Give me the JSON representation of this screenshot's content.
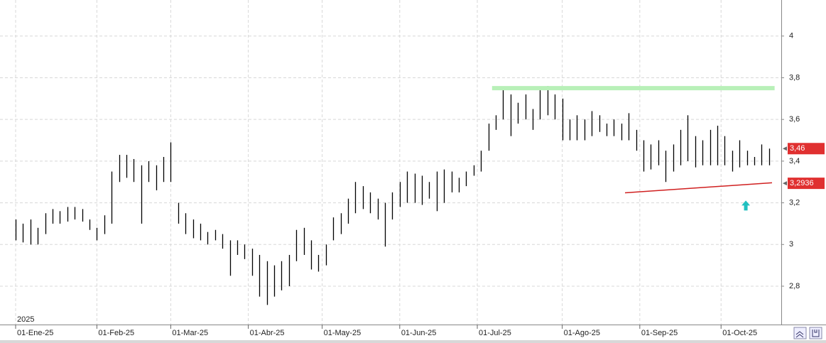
{
  "chart_data": {
    "type": "hilo",
    "year_label": "2025",
    "x": [
      0,
      2,
      4,
      6,
      8,
      10,
      12,
      14,
      16,
      18,
      20,
      22,
      24,
      26,
      28,
      30,
      32,
      34,
      36,
      38,
      40,
      42,
      44,
      46,
      48,
      50,
      52,
      54,
      56,
      58,
      60,
      62,
      64,
      66,
      68,
      70,
      72,
      74,
      76,
      78,
      80,
      82,
      84,
      86,
      88,
      90,
      92,
      94,
      96,
      98,
      100,
      102,
      104,
      106,
      108,
      110,
      112,
      114,
      116,
      118,
      120,
      122,
      124,
      126,
      128,
      130,
      132,
      134,
      136,
      138,
      140,
      142,
      144,
      146,
      148,
      150,
      152,
      154,
      156,
      158,
      160,
      162,
      164,
      166,
      168,
      170,
      172,
      174,
      176,
      178,
      180,
      182,
      184,
      186,
      188,
      190,
      192,
      194,
      196,
      198,
      200,
      202,
      204
    ],
    "high": [
      3.12,
      3.1,
      3.12,
      3.08,
      3.15,
      3.17,
      3.16,
      3.18,
      3.18,
      3.17,
      3.12,
      3.08,
      3.14,
      3.35,
      3.43,
      3.43,
      3.41,
      3.38,
      3.4,
      3.38,
      3.42,
      3.49,
      3.2,
      3.15,
      3.12,
      3.1,
      3.06,
      3.07,
      3.05,
      3.02,
      3.02,
      3.0,
      2.98,
      2.95,
      2.92,
      2.9,
      2.92,
      2.95,
      3.07,
      3.08,
      3.02,
      2.95,
      3.0,
      3.13,
      3.15,
      3.22,
      3.3,
      3.28,
      3.25,
      3.22,
      3.2,
      3.25,
      3.3,
      3.35,
      3.34,
      3.33,
      3.3,
      3.35,
      3.36,
      3.35,
      3.32,
      3.35,
      3.38,
      3.45,
      3.58,
      3.62,
      3.75,
      3.72,
      3.68,
      3.72,
      3.65,
      3.75,
      3.76,
      3.72,
      3.7,
      3.6,
      3.62,
      3.6,
      3.64,
      3.62,
      3.58,
      3.6,
      3.58,
      3.63,
      3.55,
      3.5,
      3.48,
      3.5,
      3.45,
      3.48,
      3.55,
      3.62,
      3.52,
      3.5,
      3.55,
      3.57,
      3.52,
      3.45,
      3.5,
      3.45,
      3.42,
      3.48,
      3.46
    ],
    "low": [
      3.02,
      3.01,
      3.0,
      3.0,
      3.05,
      3.1,
      3.1,
      3.11,
      3.12,
      3.11,
      3.07,
      3.02,
      3.05,
      3.1,
      3.3,
      3.32,
      3.3,
      3.1,
      3.3,
      3.26,
      3.3,
      3.3,
      3.1,
      3.05,
      3.03,
      3.02,
      3.0,
      3.02,
      2.98,
      2.85,
      2.95,
      2.93,
      2.85,
      2.75,
      2.71,
      2.75,
      2.78,
      2.8,
      2.92,
      2.95,
      2.88,
      2.87,
      2.9,
      3.02,
      3.05,
      3.1,
      3.15,
      3.17,
      3.15,
      3.12,
      2.99,
      3.12,
      3.18,
      3.2,
      3.2,
      3.19,
      3.22,
      3.16,
      3.2,
      3.25,
      3.25,
      3.28,
      3.33,
      3.35,
      3.45,
      3.55,
      3.6,
      3.52,
      3.58,
      3.6,
      3.55,
      3.6,
      3.62,
      3.6,
      3.5,
      3.5,
      3.5,
      3.5,
      3.52,
      3.54,
      3.52,
      3.52,
      3.5,
      3.5,
      3.45,
      3.35,
      3.36,
      3.38,
      3.3,
      3.35,
      3.38,
      3.4,
      3.37,
      3.38,
      3.38,
      3.38,
      3.38,
      3.35,
      3.37,
      3.38,
      3.38,
      3.38,
      3.38
    ],
    "bar_color": "#000000",
    "xlim": [
      -4.23,
      207.3
    ],
    "ylim": [
      2.616,
      4.173
    ],
    "xticks": [
      {
        "value": 0,
        "label": "01-Ene-25"
      },
      {
        "value": 22,
        "label": "01-Feb-25"
      },
      {
        "value": 42,
        "label": "01-Mar-25"
      },
      {
        "value": 63,
        "label": "01-Abr-25"
      },
      {
        "value": 83,
        "label": "01-May-25"
      },
      {
        "value": 104,
        "label": "01-Jun-25"
      },
      {
        "value": 125,
        "label": "01-Jul-25"
      },
      {
        "value": 148,
        "label": "01-Ago-25"
      },
      {
        "value": 169,
        "label": "01-Sep-25"
      },
      {
        "value": 191,
        "label": "01-Oct-25"
      }
    ],
    "yticks": [
      {
        "value": 2.8,
        "label": "2,8"
      },
      3,
      {
        "value": 3.2,
        "label": "3,2"
      },
      {
        "value": 3.4,
        "label": "3,4"
      },
      {
        "value": 3.6,
        "label": "3,6"
      },
      {
        "value": 3.8,
        "label": "3,8"
      },
      4
    ],
    "grid": true,
    "price_labels": [
      {
        "value": 3.46,
        "label": "3,46"
      },
      {
        "value": 3.2936,
        "label": "3,2936"
      }
    ],
    "price_label_color": "#e03030",
    "lines": [
      {
        "x": [
          129,
          205.5
        ],
        "y": [
          3.75,
          3.75
        ],
        "color": "#b8f0b8"
      },
      {
        "x": [
          165,
          204.8
        ],
        "y": [
          3.248,
          3.296
        ],
        "color": "#d02020"
      }
    ],
    "arrow": {
      "x": 197.7,
      "y": 3.187,
      "color": "#20c0c0"
    }
  }
}
